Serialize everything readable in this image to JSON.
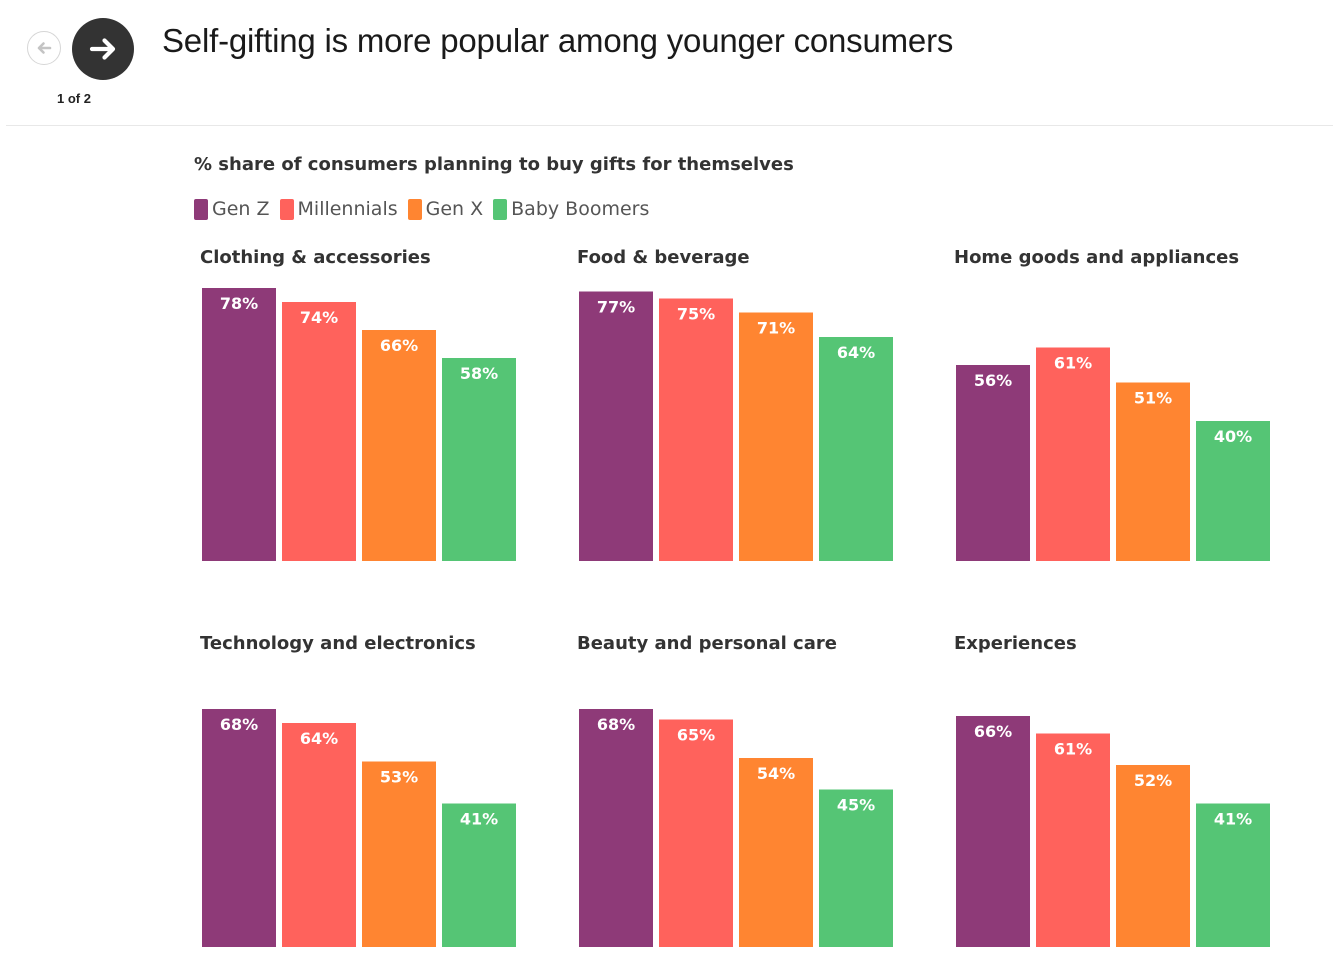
{
  "header": {
    "title": "Self-gifting is more popular among younger consumers",
    "pager": "1 of 2"
  },
  "icons": {
    "prev": "arrow-left-icon",
    "next": "arrow-right-icon"
  },
  "colors": {
    "gen_z": "#8e3a78",
    "millennials": "#ff625c",
    "gen_x": "#ff8531",
    "baby_boomers": "#55c575",
    "nav_dark": "#333333"
  },
  "chart_data": {
    "type": "bar",
    "title": "% share of consumers planning to buy gifts for themselves",
    "legend": [
      {
        "name": "Gen Z",
        "color": "#8e3a78"
      },
      {
        "name": "Millennials",
        "color": "#ff625c"
      },
      {
        "name": "Gen X",
        "color": "#ff8531"
      },
      {
        "name": "Baby Boomers",
        "color": "#55c575"
      }
    ],
    "legend_position": "top-left",
    "ylim": [
      0,
      100
    ],
    "grid": false,
    "value_suffix": "%",
    "panels": [
      {
        "title": "Clothing & accessories",
        "values": [
          78,
          74,
          66,
          58
        ]
      },
      {
        "title": "Food & beverage",
        "values": [
          77,
          75,
          71,
          64
        ]
      },
      {
        "title": "Home goods and appliances",
        "values": [
          56,
          61,
          51,
          40
        ]
      },
      {
        "title": "Technology and electronics",
        "values": [
          68,
          64,
          53,
          41
        ]
      },
      {
        "title": "Beauty and personal care",
        "values": [
          68,
          65,
          54,
          45
        ]
      },
      {
        "title": "Experiences",
        "values": [
          66,
          61,
          52,
          41
        ]
      }
    ]
  }
}
